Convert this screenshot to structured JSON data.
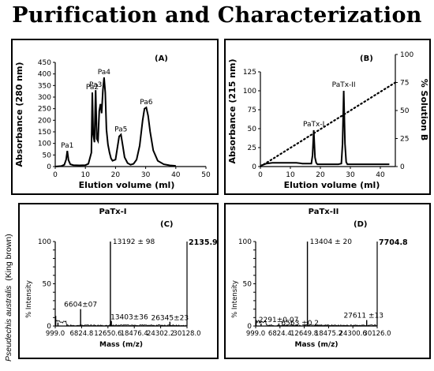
{
  "page": {
    "title": "Purification and Characterization",
    "species_label": "Pseudechis australis",
    "species_common": "(King brown)"
  },
  "chart_data": [
    {
      "id": "A",
      "type": "line",
      "panel_label": "(A)",
      "xlabel": "Elution volume (ml)",
      "ylabel": "Absorbance (280 nm)",
      "xlim": [
        0,
        50
      ],
      "ylim": [
        0,
        450
      ],
      "xticks": [
        0,
        10,
        20,
        30,
        40,
        50
      ],
      "yticks": [
        0,
        50,
        100,
        150,
        200,
        250,
        300,
        350,
        400,
        450
      ],
      "series": [
        {
          "x": [
            0,
            2,
            3,
            3.6,
            4,
            4.4,
            5,
            6,
            8,
            10,
            11,
            12,
            12.3,
            12.6,
            13,
            13.4,
            13.8,
            14.2,
            14.6,
            15,
            15.4,
            15.8,
            16.2,
            16.6,
            17,
            17.5,
            18,
            18.5,
            19,
            20,
            20.6,
            21.2,
            21.8,
            22.4,
            23,
            24,
            25,
            26,
            27,
            28,
            29,
            29.6,
            30.2,
            30.8,
            31.5,
            32.5,
            34,
            36,
            38,
            40
          ],
          "y": [
            0,
            2,
            8,
            30,
            68,
            28,
            10,
            6,
            5,
            6,
            12,
            60,
            320,
            140,
            105,
            330,
            120,
            110,
            240,
            270,
            230,
            330,
            385,
            320,
            160,
            95,
            60,
            35,
            25,
            30,
            80,
            130,
            138,
            90,
            40,
            15,
            8,
            12,
            30,
            90,
            200,
            250,
            255,
            220,
            150,
            70,
            25,
            10,
            5,
            3
          ]
        }
      ],
      "annotations": [
        {
          "text": "Pa1",
          "x": 4,
          "y": 68
        },
        {
          "text": "Pa2",
          "x": 12.3,
          "y": 320
        },
        {
          "text": "Pa3",
          "x": 13.4,
          "y": 330
        },
        {
          "text": "Pa4",
          "x": 16.2,
          "y": 385
        },
        {
          "text": "Pa5",
          "x": 21.8,
          "y": 138
        },
        {
          "text": "Pa6",
          "x": 30.2,
          "y": 255
        }
      ]
    },
    {
      "id": "B",
      "type": "line",
      "panel_label": "(B)",
      "xlabel": "Elution volume (ml)",
      "ylabel": "Absorbance (215 nm)",
      "y2label": "% Solution B",
      "xlim": [
        0,
        45
      ],
      "ylim": [
        0,
        125
      ],
      "y2lim": [
        0,
        100
      ],
      "xticks": [
        0,
        10,
        20,
        30,
        40
      ],
      "yticks": [
        0,
        25,
        50,
        75,
        100,
        125
      ],
      "y2ticks": [
        0,
        25,
        50,
        75,
        100
      ],
      "series": [
        {
          "x": [
            0,
            2,
            4,
            6,
            8,
            10,
            12,
            14,
            16,
            17,
            17.4,
            17.8,
            18.2,
            18.6,
            19,
            20,
            22,
            24,
            26,
            27,
            27.4,
            27.8,
            28.2,
            28.6,
            29,
            30,
            33,
            36,
            40,
            43
          ],
          "y": [
            1,
            4,
            5,
            5,
            5,
            5,
            5,
            4,
            4,
            4,
            15,
            48,
            12,
            5,
            3,
            3,
            3,
            3,
            3,
            4,
            30,
            100,
            30,
            6,
            3,
            3,
            3,
            3,
            3,
            3
          ]
        }
      ],
      "gradient": {
        "x": [
          0,
          45
        ],
        "y": [
          0,
          75
        ]
      },
      "annotations": [
        {
          "text": "PaTx-I",
          "x": 17.8,
          "y": 48
        },
        {
          "text": "PaTx-II",
          "x": 27.8,
          "y": 100
        }
      ]
    },
    {
      "id": "C",
      "type": "line",
      "title": "PaTx-I",
      "panel_label": "(C)",
      "xlabel": "Mass (m/z)",
      "ylabel": "% Intensity",
      "xlim": [
        999.0,
        30128.0
      ],
      "ylim": [
        0,
        100
      ],
      "xticks": [
        "999.0",
        "6824.8",
        "12650.6",
        "18476.4",
        "24302.2",
        "30128.0"
      ],
      "yticks": [
        0,
        10,
        20,
        30,
        40,
        50,
        60,
        70,
        80,
        90,
        100
      ],
      "max_intensity_label": "2135.9",
      "peaks": [
        {
          "x": 1100,
          "y": 12
        },
        {
          "x": 1600,
          "y": 4
        },
        {
          "x": 6604,
          "y": 20
        },
        {
          "x": 13192,
          "y": 100
        },
        {
          "x": 13403,
          "y": 6
        },
        {
          "x": 26345,
          "y": 5
        }
      ],
      "peak_labels": [
        {
          "text": "13192 ± 98",
          "x": 13192,
          "y": 100
        },
        {
          "text": "6604±07",
          "x": 6604,
          "y": 20
        },
        {
          "text": "13403±36",
          "x": 13403,
          "y": 6
        },
        {
          "text": "26345±23",
          "x": 26345,
          "y": 5
        }
      ]
    },
    {
      "id": "D",
      "type": "line",
      "title": "PaTx-II",
      "panel_label": "(D)",
      "xlabel": "Mass (m/z)",
      "ylabel": "% Intensity",
      "xlim": [
        999.0,
        30126.0
      ],
      "ylim": [
        0,
        100
      ],
      "xticks": [
        "999.0",
        "6824.4",
        "12649.8",
        "18475.2",
        "24300.6",
        "30126.0"
      ],
      "yticks": [
        0,
        10,
        20,
        30,
        40,
        50,
        60,
        70,
        80,
        90,
        100
      ],
      "max_intensity_label": "7704.8",
      "peaks": [
        {
          "x": 1100,
          "y": 6
        },
        {
          "x": 2291,
          "y": 3
        },
        {
          "x": 6563,
          "y": 3
        },
        {
          "x": 13404,
          "y": 100
        },
        {
          "x": 27611,
          "y": 7
        }
      ],
      "peak_labels": [
        {
          "text": "13404 ± 20",
          "x": 13404,
          "y": 100
        },
        {
          "text": "2291±0.07",
          "x": 2291,
          "y": 3
        },
        {
          "text": "6563 ±0.2",
          "x": 6563,
          "y": 3
        },
        {
          "text": "27611 ±13",
          "x": 27611,
          "y": 7
        }
      ]
    }
  ]
}
